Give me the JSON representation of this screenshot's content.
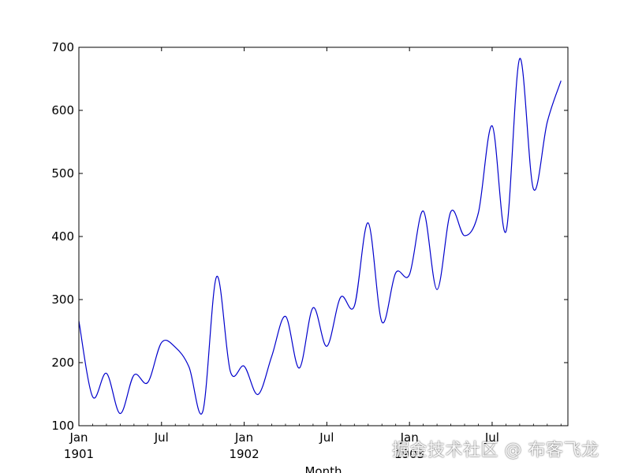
{
  "chart_data": {
    "type": "line",
    "xlabel": "Month",
    "ylabel": "",
    "ylim": [
      100,
      700
    ],
    "yticks": [
      100,
      200,
      300,
      400,
      500,
      600,
      700
    ],
    "xticks": [
      {
        "month": 0,
        "label": "Jan",
        "year": "1901"
      },
      {
        "month": 6,
        "label": "Jul",
        "year": ""
      },
      {
        "month": 12,
        "label": "Jan",
        "year": "1902"
      },
      {
        "month": 18,
        "label": "Jul",
        "year": ""
      },
      {
        "month": 24,
        "label": "Jan",
        "year": "1903"
      },
      {
        "month": 30,
        "label": "Jul",
        "year": ""
      }
    ],
    "grid": false,
    "line_color": "#0000cc",
    "series": [
      {
        "x": [
          "1901-01",
          "1901-02",
          "1901-03",
          "1901-04",
          "1901-05",
          "1901-06",
          "1901-07",
          "1901-08",
          "1901-09",
          "1901-10",
          "1901-11",
          "1901-12",
          "1902-01",
          "1902-02",
          "1902-03",
          "1902-04",
          "1902-05",
          "1902-06",
          "1902-07",
          "1902-08",
          "1902-09",
          "1902-10",
          "1902-11",
          "1902-12",
          "1903-01",
          "1903-02",
          "1903-03",
          "1903-04",
          "1903-05",
          "1903-06",
          "1903-07",
          "1903-08",
          "1903-09",
          "1903-10",
          "1903-11",
          "1903-12"
        ],
        "values": [
          266.0,
          145.9,
          183.1,
          119.3,
          180.3,
          168.5,
          231.8,
          224.5,
          192.8,
          122.9,
          336.5,
          185.9,
          194.3,
          149.5,
          210.1,
          273.3,
          191.4,
          287.0,
          226.0,
          303.6,
          289.9,
          421.6,
          264.5,
          342.3,
          339.7,
          440.4,
          315.9,
          439.3,
          401.3,
          437.4,
          575.5,
          407.6,
          682.0,
          475.3,
          581.3,
          646.9
        ]
      }
    ]
  },
  "watermark": "掘金技术社区 @ 布客飞龙"
}
